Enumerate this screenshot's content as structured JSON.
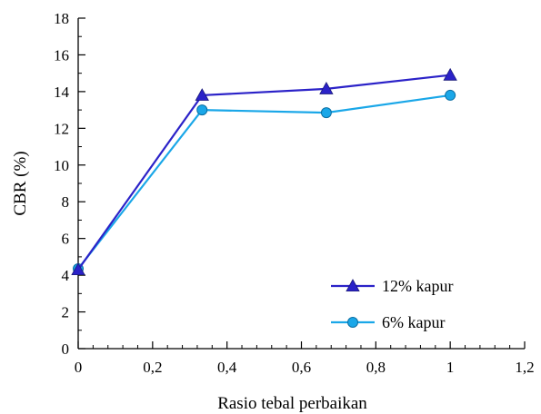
{
  "chart_data": {
    "type": "line",
    "xlabel": "Rasio tebal perbaikan",
    "ylabel": "CBR (%)",
    "xlim": [
      0,
      1.2
    ],
    "ylim": [
      0,
      18
    ],
    "x_ticks": [
      "0",
      "0,2",
      "0,4",
      "0,6",
      "0,8",
      "1",
      "1,2"
    ],
    "y_ticks": [
      "0",
      "2",
      "4",
      "6",
      "8",
      "10",
      "12",
      "14",
      "16",
      "18"
    ],
    "grid": false,
    "legend_position": "bottom-right",
    "series": [
      {
        "name": "12% kapur",
        "marker": "triangle",
        "color": "#2b22c8",
        "x": [
          0,
          0.333,
          0.667,
          1.0
        ],
        "y": [
          4.3,
          13.8,
          14.15,
          14.9
        ]
      },
      {
        "name": "6% kapur",
        "marker": "circle",
        "color": "#1aa7e8",
        "x": [
          0,
          0.333,
          0.667,
          1.0
        ],
        "y": [
          4.35,
          13.0,
          12.85,
          13.8
        ]
      }
    ]
  }
}
